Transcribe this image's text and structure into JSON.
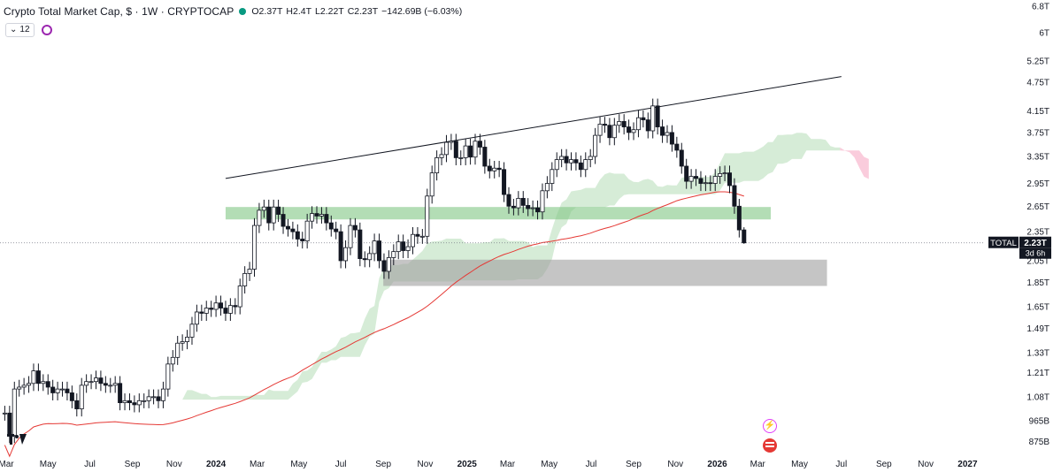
{
  "header": {
    "title": "Crypto Total Market Cap, $ · 1W · CRYPTOCAP",
    "open": "O2.37T",
    "high": "H2.4T",
    "low": "L2.22T",
    "close": "C2.23T",
    "change": "−142.69B (−6.03%)",
    "indicator_count": "12"
  },
  "price_tag": {
    "label": "TOTAL",
    "value": "2.23T",
    "countdown": "3d 6h"
  },
  "colors": {
    "up": "#ffffff",
    "down": "#131722",
    "zone_green": "#81c784",
    "zone_gray": "#9e9e9e",
    "cloud_green": "#c8e6c9",
    "cloud_red": "#f8bbd0",
    "ma_line": "#e53935",
    "trendline": "#131722"
  },
  "chart_data": {
    "type": "candlestick",
    "title": "Crypto Total Market Cap, $ · 1W · CRYPTOCAP",
    "scale": "log",
    "ylim": [
      0.82,
      7.0
    ],
    "y_ticks": [
      {
        "value": 6.8,
        "label": "6.8T"
      },
      {
        "value": 6.0,
        "label": "6T"
      },
      {
        "value": 5.25,
        "label": "5.25T"
      },
      {
        "value": 4.75,
        "label": "4.75T"
      },
      {
        "value": 4.15,
        "label": "4.15T"
      },
      {
        "value": 3.75,
        "label": "3.75T"
      },
      {
        "value": 3.35,
        "label": "3.35T"
      },
      {
        "value": 2.95,
        "label": "2.95T"
      },
      {
        "value": 2.65,
        "label": "2.65T"
      },
      {
        "value": 2.35,
        "label": "2.35T"
      },
      {
        "value": 2.05,
        "label": "2.05T"
      },
      {
        "value": 1.85,
        "label": "1.85T"
      },
      {
        "value": 1.65,
        "label": "1.65T"
      },
      {
        "value": 1.49,
        "label": "1.49T"
      },
      {
        "value": 1.33,
        "label": "1.33T"
      },
      {
        "value": 1.21,
        "label": "1.21T"
      },
      {
        "value": 1.08,
        "label": "1.08T"
      },
      {
        "value": 0.965,
        "label": "965B"
      },
      {
        "value": 0.875,
        "label": "875B"
      }
    ],
    "x_ticks": [
      {
        "date": "2023-03-01",
        "label": "Mar"
      },
      {
        "date": "2023-05-01",
        "label": "May"
      },
      {
        "date": "2023-07-01",
        "label": "Jul"
      },
      {
        "date": "2023-09-01",
        "label": "Sep"
      },
      {
        "date": "2023-11-01",
        "label": "Nov"
      },
      {
        "date": "2024-01-01",
        "label": "2024"
      },
      {
        "date": "2024-03-01",
        "label": "Mar"
      },
      {
        "date": "2024-05-01",
        "label": "May"
      },
      {
        "date": "2024-07-01",
        "label": "Jul"
      },
      {
        "date": "2024-09-01",
        "label": "Sep"
      },
      {
        "date": "2024-11-01",
        "label": "Nov"
      },
      {
        "date": "2025-01-01",
        "label": "2025"
      },
      {
        "date": "2025-03-01",
        "label": "Mar"
      },
      {
        "date": "2025-05-01",
        "label": "May"
      },
      {
        "date": "2025-07-01",
        "label": "Jul"
      },
      {
        "date": "2025-09-01",
        "label": "Sep"
      },
      {
        "date": "2025-11-01",
        "label": "Nov"
      },
      {
        "date": "2026-01-01",
        "label": "2026"
      },
      {
        "date": "2026-03-01",
        "label": "Mar"
      },
      {
        "date": "2026-05-01",
        "label": "May"
      },
      {
        "date": "2026-07-01",
        "label": "Jul"
      },
      {
        "date": "2026-09-01",
        "label": "Sep"
      },
      {
        "date": "2026-11-01",
        "label": "Nov"
      },
      {
        "date": "2027-01-01",
        "label": "2027"
      }
    ],
    "last_candle": {
      "date": "2026-02-09",
      "open": 2.37,
      "high": 2.4,
      "low": 2.22,
      "close": 2.23
    },
    "weekly_close": [
      [
        "2023-02-27",
        1.0
      ],
      [
        "2023-03-06",
        0.9
      ],
      [
        "2023-03-13",
        1.12
      ],
      [
        "2023-03-20",
        1.13
      ],
      [
        "2023-03-27",
        1.14
      ],
      [
        "2023-04-03",
        1.15
      ],
      [
        "2023-04-10",
        1.22
      ],
      [
        "2023-04-17",
        1.15
      ],
      [
        "2023-04-24",
        1.16
      ],
      [
        "2023-05-01",
        1.13
      ],
      [
        "2023-05-08",
        1.1
      ],
      [
        "2023-05-15",
        1.12
      ],
      [
        "2023-05-22",
        1.12
      ],
      [
        "2023-05-29",
        1.1
      ],
      [
        "2023-06-05",
        1.06
      ],
      [
        "2023-06-12",
        1.02
      ],
      [
        "2023-06-19",
        1.14
      ],
      [
        "2023-06-26",
        1.16
      ],
      [
        "2023-07-03",
        1.16
      ],
      [
        "2023-07-10",
        1.18
      ],
      [
        "2023-07-17",
        1.15
      ],
      [
        "2023-07-24",
        1.14
      ],
      [
        "2023-07-31",
        1.14
      ],
      [
        "2023-08-07",
        1.15
      ],
      [
        "2023-08-14",
        1.05
      ],
      [
        "2023-08-21",
        1.06
      ],
      [
        "2023-08-28",
        1.05
      ],
      [
        "2023-09-04",
        1.04
      ],
      [
        "2023-09-11",
        1.06
      ],
      [
        "2023-09-18",
        1.06
      ],
      [
        "2023-09-25",
        1.08
      ],
      [
        "2023-10-02",
        1.08
      ],
      [
        "2023-10-09",
        1.06
      ],
      [
        "2023-10-16",
        1.12
      ],
      [
        "2023-10-23",
        1.26
      ],
      [
        "2023-10-30",
        1.3
      ],
      [
        "2023-11-06",
        1.39
      ],
      [
        "2023-11-13",
        1.4
      ],
      [
        "2023-11-20",
        1.43
      ],
      [
        "2023-11-27",
        1.52
      ],
      [
        "2023-12-04",
        1.61
      ],
      [
        "2023-12-11",
        1.6
      ],
      [
        "2023-12-18",
        1.64
      ],
      [
        "2023-12-25",
        1.63
      ],
      [
        "2024-01-01",
        1.68
      ],
      [
        "2024-01-08",
        1.64
      ],
      [
        "2024-01-15",
        1.6
      ],
      [
        "2024-01-22",
        1.66
      ],
      [
        "2024-01-29",
        1.65
      ],
      [
        "2024-02-05",
        1.82
      ],
      [
        "2024-02-12",
        1.93
      ],
      [
        "2024-02-19",
        1.97
      ],
      [
        "2024-02-26",
        2.42
      ],
      [
        "2024-03-04",
        2.6
      ],
      [
        "2024-03-11",
        2.64
      ],
      [
        "2024-03-18",
        2.45
      ],
      [
        "2024-03-25",
        2.64
      ],
      [
        "2024-04-01",
        2.55
      ],
      [
        "2024-04-08",
        2.41
      ],
      [
        "2024-04-15",
        2.38
      ],
      [
        "2024-04-22",
        2.35
      ],
      [
        "2024-04-29",
        2.27
      ],
      [
        "2024-05-06",
        2.25
      ],
      [
        "2024-05-13",
        2.47
      ],
      [
        "2024-05-20",
        2.56
      ],
      [
        "2024-05-27",
        2.53
      ],
      [
        "2024-06-03",
        2.55
      ],
      [
        "2024-06-10",
        2.45
      ],
      [
        "2024-06-17",
        2.38
      ],
      [
        "2024-06-24",
        2.35
      ],
      [
        "2024-07-01",
        2.05
      ],
      [
        "2024-07-08",
        2.18
      ],
      [
        "2024-07-15",
        2.42
      ],
      [
        "2024-07-22",
        2.37
      ],
      [
        "2024-07-29",
        2.07
      ],
      [
        "2024-08-05",
        2.06
      ],
      [
        "2024-08-12",
        2.12
      ],
      [
        "2024-08-19",
        2.25
      ],
      [
        "2024-08-26",
        2.05
      ],
      [
        "2024-09-02",
        1.95
      ],
      [
        "2024-09-09",
        2.08
      ],
      [
        "2024-09-16",
        2.14
      ],
      [
        "2024-09-23",
        2.24
      ],
      [
        "2024-09-30",
        2.15
      ],
      [
        "2024-10-07",
        2.19
      ],
      [
        "2024-10-14",
        2.32
      ],
      [
        "2024-10-21",
        2.3
      ],
      [
        "2024-10-28",
        2.3
      ],
      [
        "2024-11-04",
        2.78
      ],
      [
        "2024-11-11",
        3.1
      ],
      [
        "2024-11-18",
        3.33
      ],
      [
        "2024-11-25",
        3.38
      ],
      [
        "2024-12-02",
        3.58
      ],
      [
        "2024-12-09",
        3.6
      ],
      [
        "2024-12-16",
        3.33
      ],
      [
        "2024-12-23",
        3.33
      ],
      [
        "2024-12-30",
        3.52
      ],
      [
        "2025-01-06",
        3.34
      ],
      [
        "2025-01-13",
        3.6
      ],
      [
        "2025-01-20",
        3.5
      ],
      [
        "2025-01-27",
        3.2
      ],
      [
        "2025-02-03",
        3.13
      ],
      [
        "2025-02-10",
        3.17
      ],
      [
        "2025-02-17",
        3.15
      ],
      [
        "2025-02-24",
        2.8
      ],
      [
        "2025-03-03",
        2.65
      ],
      [
        "2025-03-10",
        2.63
      ],
      [
        "2025-03-17",
        2.75
      ],
      [
        "2025-03-24",
        2.66
      ],
      [
        "2025-03-31",
        2.62
      ],
      [
        "2025-04-07",
        2.63
      ],
      [
        "2025-04-14",
        2.58
      ],
      [
        "2025-04-21",
        2.85
      ],
      [
        "2025-04-28",
        2.95
      ],
      [
        "2025-05-05",
        3.15
      ],
      [
        "2025-05-12",
        3.3
      ],
      [
        "2025-05-19",
        3.35
      ],
      [
        "2025-05-26",
        3.25
      ],
      [
        "2025-06-02",
        3.3
      ],
      [
        "2025-06-09",
        3.25
      ],
      [
        "2025-06-16",
        3.15
      ],
      [
        "2025-06-23",
        3.3
      ],
      [
        "2025-06-30",
        3.35
      ],
      [
        "2025-07-07",
        3.7
      ],
      [
        "2025-07-14",
        3.9
      ],
      [
        "2025-07-21",
        3.88
      ],
      [
        "2025-07-28",
        3.66
      ],
      [
        "2025-08-04",
        3.88
      ],
      [
        "2025-08-11",
        3.95
      ],
      [
        "2025-08-18",
        3.85
      ],
      [
        "2025-08-25",
        3.75
      ],
      [
        "2025-09-01",
        3.8
      ],
      [
        "2025-09-08",
        4.02
      ],
      [
        "2025-09-15",
        3.98
      ],
      [
        "2025-09-22",
        3.78
      ],
      [
        "2025-09-29",
        4.25
      ],
      [
        "2025-10-06",
        3.85
      ],
      [
        "2025-10-13",
        3.7
      ],
      [
        "2025-10-20",
        3.75
      ],
      [
        "2025-10-27",
        3.55
      ],
      [
        "2025-11-03",
        3.45
      ],
      [
        "2025-11-10",
        3.2
      ],
      [
        "2025-11-17",
        2.98
      ],
      [
        "2025-11-24",
        3.05
      ],
      [
        "2025-12-01",
        3.02
      ],
      [
        "2025-12-08",
        2.95
      ],
      [
        "2025-12-15",
        2.96
      ],
      [
        "2025-12-22",
        2.95
      ],
      [
        "2025-12-29",
        3.05
      ],
      [
        "2026-01-05",
        3.09
      ],
      [
        "2026-01-12",
        3.1
      ],
      [
        "2026-01-19",
        2.92
      ],
      [
        "2026-01-26",
        2.65
      ],
      [
        "2026-02-02",
        2.37
      ],
      [
        "2026-02-09",
        2.23
      ]
    ],
    "zones": [
      {
        "name": "resistance-zone",
        "from_date": "2024-01-15",
        "to_date": "2026-03-20",
        "low": 2.49,
        "high": 2.64
      },
      {
        "name": "support-zone",
        "from_date": "2024-09-01",
        "to_date": "2026-06-10",
        "low": 1.82,
        "high": 2.06
      }
    ],
    "trendline": {
      "from": [
        "2024-01-15",
        3.02
      ],
      "to": [
        "2026-07-01",
        4.88
      ]
    },
    "current_price": 2.23
  }
}
